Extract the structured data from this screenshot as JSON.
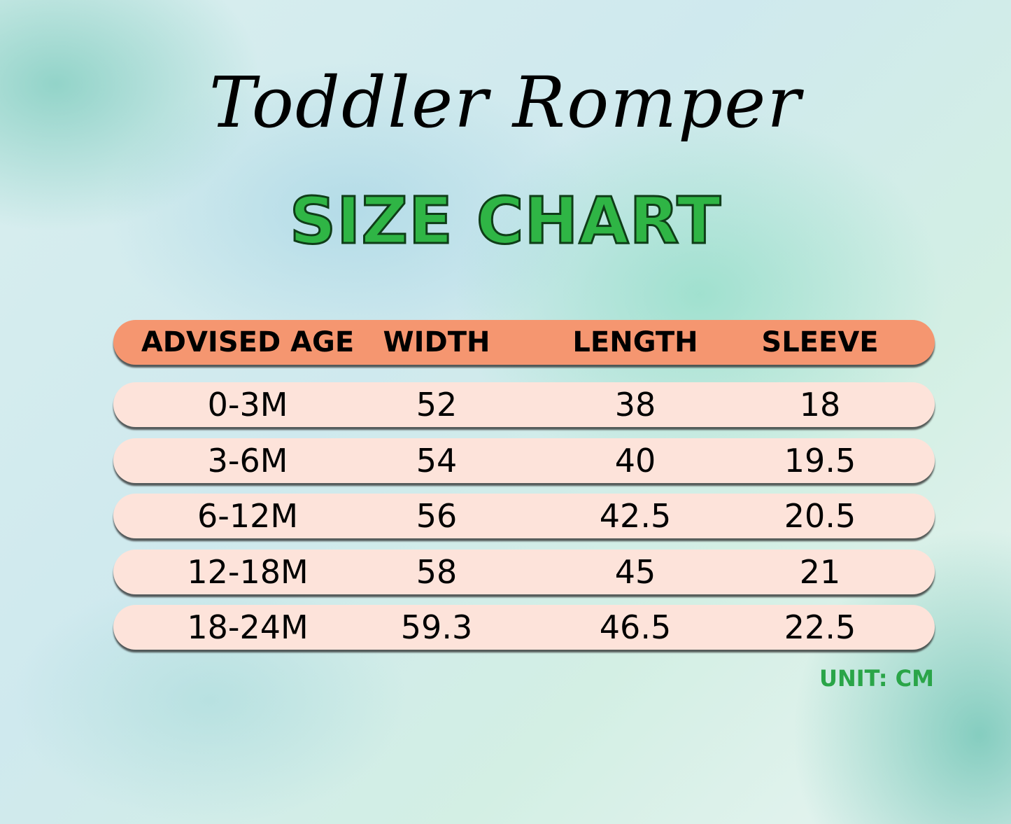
{
  "title": "Toddler Romper",
  "subtitle": "SIZE CHART",
  "colors": {
    "header_bg": "#f59670",
    "row_bg": "#fde3da",
    "subtitle": "#2fb545",
    "unit": "#2aa548"
  },
  "table": {
    "headers": [
      "ADVISED AGE",
      "WIDTH",
      "LENGTH",
      "SLEEVE"
    ],
    "rows": [
      [
        "0-3M",
        "52",
        "38",
        "18"
      ],
      [
        "3-6M",
        "54",
        "40",
        "19.5"
      ],
      [
        "6-12M",
        "56",
        "42.5",
        "20.5"
      ],
      [
        "12-18M",
        "58",
        "45",
        "21"
      ],
      [
        "18-24M",
        "59.3",
        "46.5",
        "22.5"
      ]
    ]
  },
  "unit": "UNIT: CM"
}
